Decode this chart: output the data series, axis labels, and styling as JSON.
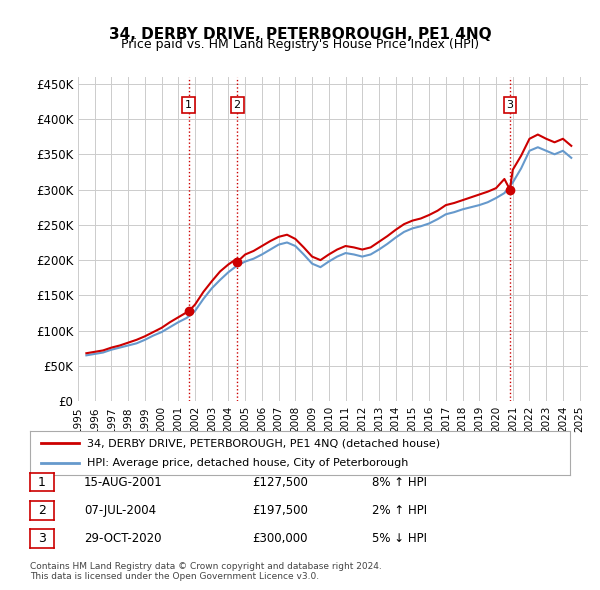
{
  "title": "34, DERBY DRIVE, PETERBOROUGH, PE1 4NQ",
  "subtitle": "Price paid vs. HM Land Registry's House Price Index (HPI)",
  "ylim": [
    0,
    460000
  ],
  "yticks": [
    0,
    50000,
    100000,
    150000,
    200000,
    250000,
    300000,
    350000,
    400000,
    450000
  ],
  "ytick_labels": [
    "£0",
    "£50K",
    "£100K",
    "£150K",
    "£200K",
    "£250K",
    "£300K",
    "£350K",
    "£400K",
    "£450K"
  ],
  "sale_color": "#cc0000",
  "hpi_color": "#6699cc",
  "vline_color": "#cc0000",
  "vline_style": "dotted",
  "background_color": "#f0f4ff",
  "plot_bg": "#ffffff",
  "legend_items": [
    "34, DERBY DRIVE, PETERBOROUGH, PE1 4NQ (detached house)",
    "HPI: Average price, detached house, City of Peterborough"
  ],
  "table_rows": [
    {
      "num": "1",
      "date": "15-AUG-2001",
      "price": "£127,500",
      "hpi": "8% ↑ HPI"
    },
    {
      "num": "2",
      "date": "07-JUL-2004",
      "price": "£197,500",
      "hpi": "2% ↑ HPI"
    },
    {
      "num": "3",
      "date": "29-OCT-2020",
      "price": "£300,000",
      "hpi": "5% ↓ HPI"
    }
  ],
  "footnote": "Contains HM Land Registry data © Crown copyright and database right 2024.\nThis data is licensed under the Open Government Licence v3.0.",
  "sale_points": [
    {
      "year": 2001.62,
      "value": 127500
    },
    {
      "year": 2004.52,
      "value": 197500
    },
    {
      "year": 2020.83,
      "value": 300000
    }
  ],
  "vlines": [
    2001.62,
    2004.52,
    2020.83
  ],
  "hpi_data": {
    "years": [
      1995.5,
      1996.0,
      1996.5,
      1997.0,
      1997.5,
      1998.0,
      1998.5,
      1999.0,
      1999.5,
      2000.0,
      2000.5,
      2001.0,
      2001.5,
      2002.0,
      2002.5,
      2003.0,
      2003.5,
      2004.0,
      2004.5,
      2005.0,
      2005.5,
      2006.0,
      2006.5,
      2007.0,
      2007.5,
      2008.0,
      2008.5,
      2009.0,
      2009.5,
      2010.0,
      2010.5,
      2011.0,
      2011.5,
      2012.0,
      2012.5,
      2013.0,
      2013.5,
      2014.0,
      2014.5,
      2015.0,
      2015.5,
      2016.0,
      2016.5,
      2017.0,
      2017.5,
      2018.0,
      2018.5,
      2019.0,
      2019.5,
      2020.0,
      2020.5,
      2021.0,
      2021.5,
      2022.0,
      2022.5,
      2023.0,
      2023.5,
      2024.0,
      2024.5
    ],
    "values": [
      65000,
      67000,
      69000,
      73000,
      76000,
      79000,
      82000,
      87000,
      93000,
      98000,
      105000,
      112000,
      118000,
      128000,
      145000,
      160000,
      172000,
      183000,
      192000,
      198000,
      202000,
      208000,
      215000,
      222000,
      225000,
      220000,
      208000,
      195000,
      190000,
      198000,
      205000,
      210000,
      208000,
      205000,
      208000,
      215000,
      223000,
      232000,
      240000,
      245000,
      248000,
      252000,
      258000,
      265000,
      268000,
      272000,
      275000,
      278000,
      282000,
      288000,
      295000,
      310000,
      330000,
      355000,
      360000,
      355000,
      350000,
      355000,
      345000
    ]
  },
  "sale_line_data": {
    "years": [
      1995.5,
      1996.0,
      1996.5,
      1997.0,
      1997.5,
      1998.0,
      1998.5,
      1999.0,
      1999.5,
      2000.0,
      2000.5,
      2001.0,
      2001.5,
      2001.62,
      2002.0,
      2002.5,
      2003.0,
      2003.5,
      2004.0,
      2004.5,
      2004.52,
      2005.0,
      2005.5,
      2006.0,
      2006.5,
      2007.0,
      2007.5,
      2008.0,
      2008.5,
      2009.0,
      2009.5,
      2010.0,
      2010.5,
      2011.0,
      2011.5,
      2012.0,
      2012.5,
      2013.0,
      2013.5,
      2014.0,
      2014.5,
      2015.0,
      2015.5,
      2016.0,
      2016.5,
      2017.0,
      2017.5,
      2018.0,
      2018.5,
      2019.0,
      2019.5,
      2020.0,
      2020.5,
      2020.83,
      2021.0,
      2021.5,
      2022.0,
      2022.5,
      2023.0,
      2023.5,
      2024.0,
      2024.5
    ],
    "values": [
      68000,
      70000,
      72000,
      76000,
      79000,
      83000,
      87000,
      92000,
      98000,
      104000,
      112000,
      119000,
      126000,
      127500,
      137000,
      155000,
      170000,
      184000,
      194000,
      202000,
      197500,
      208000,
      213000,
      220000,
      227000,
      233000,
      236000,
      230000,
      218000,
      205000,
      200000,
      208000,
      215000,
      220000,
      218000,
      215000,
      218000,
      226000,
      234000,
      243000,
      251000,
      256000,
      259000,
      264000,
      270000,
      278000,
      281000,
      285000,
      289000,
      293000,
      297000,
      302000,
      315000,
      300000,
      328000,
      348000,
      372000,
      378000,
      372000,
      367000,
      372000,
      362000
    ]
  }
}
